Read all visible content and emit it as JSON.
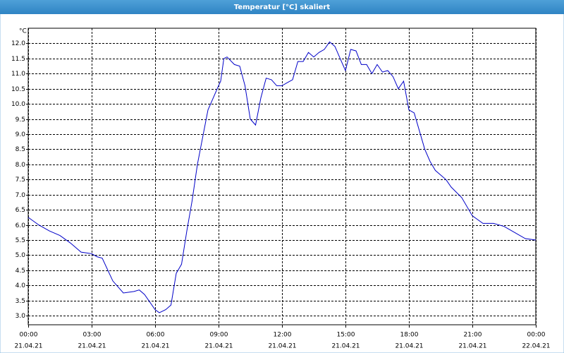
{
  "chart_data": {
    "type": "line",
    "title": "Temperatur [°C] skaliert",
    "ylabel": "°C",
    "x": [
      0,
      0.5,
      1,
      1.5,
      2,
      2.5,
      3,
      3.25,
      3.5,
      4,
      4.5,
      5,
      5.25,
      5.5,
      6,
      6.2,
      6.5,
      6.75,
      7,
      7.25,
      7.5,
      7.75,
      8,
      8.25,
      8.5,
      8.75,
      9,
      9.1,
      9.25,
      9.4,
      9.75,
      10,
      10.25,
      10.5,
      10.75,
      11,
      11.25,
      11.5,
      11.75,
      12,
      12.25,
      12.5,
      12.75,
      13,
      13.25,
      13.5,
      13.75,
      14,
      14.25,
      14.5,
      14.75,
      15,
      15.25,
      15.5,
      15.75,
      16,
      16.25,
      16.5,
      16.75,
      17,
      17.25,
      17.5,
      17.75,
      18,
      18.25,
      18.5,
      18.75,
      19,
      19.25,
      19.5,
      19.75,
      20,
      20.5,
      21,
      21.5,
      22,
      22.5,
      23,
      23.5,
      24
    ],
    "series": [
      {
        "name": "Temperatur",
        "color": "#0000c8",
        "values": [
          6.25,
          6.0,
          5.8,
          5.65,
          5.4,
          5.1,
          5.05,
          4.95,
          4.9,
          4.15,
          3.75,
          3.8,
          3.85,
          3.7,
          3.2,
          3.1,
          3.2,
          3.35,
          4.4,
          4.7,
          5.8,
          6.8,
          8.0,
          8.9,
          9.8,
          10.2,
          10.6,
          10.75,
          11.5,
          11.55,
          11.3,
          11.25,
          10.6,
          9.5,
          9.3,
          10.2,
          10.85,
          10.8,
          10.6,
          10.6,
          10.7,
          10.8,
          11.4,
          11.4,
          11.7,
          11.55,
          11.7,
          11.8,
          12.05,
          11.9,
          11.5,
          11.1,
          11.8,
          11.75,
          11.3,
          11.3,
          11.0,
          11.3,
          11.05,
          11.1,
          10.9,
          10.5,
          10.75,
          9.8,
          9.7,
          9.1,
          8.5,
          8.1,
          7.8,
          7.65,
          7.5,
          7.25,
          6.9,
          6.3,
          6.05,
          6.05,
          5.95,
          5.75,
          5.55,
          5.5
        ]
      }
    ],
    "xlim": [
      0,
      24
    ],
    "xticks": [
      {
        "value": 0,
        "label": "00:00",
        "date": "21.04.21"
      },
      {
        "value": 3,
        "label": "03:00",
        "date": "21.04.21"
      },
      {
        "value": 6,
        "label": "06:00",
        "date": "21.04.21"
      },
      {
        "value": 9,
        "label": "09:00",
        "date": "21.04.21"
      },
      {
        "value": 12,
        "label": "12:00",
        "date": "21.04.21"
      },
      {
        "value": 15,
        "label": "15:00",
        "date": "21.04.21"
      },
      {
        "value": 18,
        "label": "18:00",
        "date": "21.04.21"
      },
      {
        "value": 21,
        "label": "21:00",
        "date": "21.04.21"
      },
      {
        "value": 24,
        "label": "00:00",
        "date": "22.04.21"
      }
    ],
    "ylim": [
      2.7,
      12.5
    ],
    "yticks": [
      {
        "value": 3,
        "label": "3.0"
      },
      {
        "value": 3.5,
        "label": "3.5"
      },
      {
        "value": 4,
        "label": "4.0"
      },
      {
        "value": 4.5,
        "label": "4.5"
      },
      {
        "value": 5,
        "label": "5.0"
      },
      {
        "value": 5.5,
        "label": "5.5"
      },
      {
        "value": 6,
        "label": "6.0"
      },
      {
        "value": 6.5,
        "label": "6.5"
      },
      {
        "value": 7,
        "label": "7.0"
      },
      {
        "value": 7.5,
        "label": "7.5"
      },
      {
        "value": 8,
        "label": "8.0"
      },
      {
        "value": 8.5,
        "label": "8.5"
      },
      {
        "value": 9,
        "label": "9.0"
      },
      {
        "value": 9.5,
        "label": "9.5"
      },
      {
        "value": 10,
        "label": "10.0"
      },
      {
        "value": 10.5,
        "label": "10.5"
      },
      {
        "value": 11,
        "label": "11.0"
      },
      {
        "value": 11.5,
        "label": "11.5"
      },
      {
        "value": 12,
        "label": "12.0"
      }
    ],
    "grid": true
  }
}
